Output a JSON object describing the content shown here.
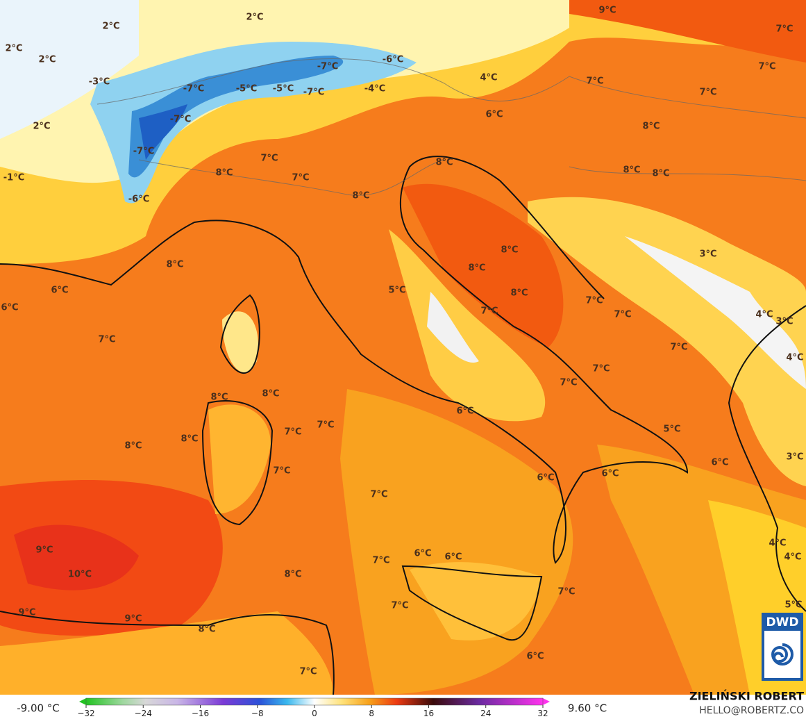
{
  "map": {
    "temperature_labels": [
      "2°C",
      "2°C",
      "9°C",
      "7°C",
      "2°C",
      "2°C",
      "-6°C",
      "-7°C",
      "7°C",
      "4°C",
      "7°C",
      "-3°C",
      "-7°C",
      "-5°C",
      "-5°C",
      "-7°C",
      "-4°C",
      "7°C",
      "6°C",
      "-7°C",
      "2°C",
      "8°C",
      "-7°C",
      "7°C",
      "8°C",
      "-1°C",
      "8°C",
      "7°C",
      "8°C",
      "8°C",
      "-6°C",
      "8°C",
      "3°C",
      "8°C",
      "8°C",
      "8°C",
      "6°C",
      "5°C",
      "8°C",
      "6°C",
      "7°C",
      "7°C",
      "7°C",
      "4°C",
      "3°C",
      "7°C",
      "7°C",
      "4°C",
      "7°C",
      "7°C",
      "8°C",
      "8°C",
      "6°C",
      "7°C",
      "5°C",
      "7°C",
      "8°C",
      "8°C",
      "6°C",
      "6°C",
      "3°C",
      "6°C",
      "7°C",
      "7°C",
      "4°C",
      "4°C",
      "9°C",
      "10°C",
      "8°C",
      "7°C",
      "6°C",
      "6°C",
      "7°C",
      "7°C",
      "5°C",
      "9°C",
      "9°C",
      "8°C",
      "6°C",
      "7°C"
    ]
  },
  "colorbar": {
    "min_label": "-9.00 °C",
    "max_label": "9.60 °C",
    "lim": [
      -32,
      32
    ],
    "ticks": [
      {
        "value": -32,
        "label": "−32"
      },
      {
        "value": -24,
        "label": "−24"
      },
      {
        "value": -16,
        "label": "−16"
      },
      {
        "value": -8,
        "label": "−8"
      },
      0,
      8,
      16,
      24,
      32
    ]
  },
  "credit": {
    "author": "ZIELIŃSKI ROBERT",
    "email": "HELLO@ROBERTZ.CO"
  },
  "logo": {
    "text": "DWD"
  }
}
